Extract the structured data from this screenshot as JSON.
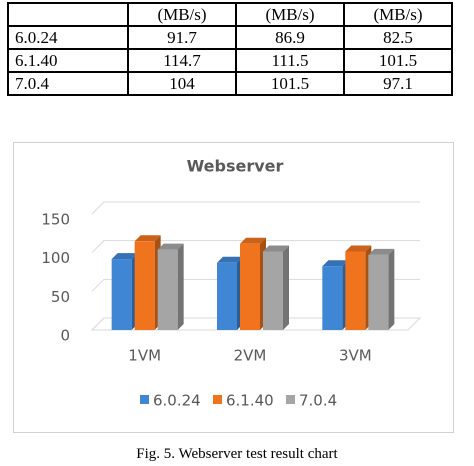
{
  "table": {
    "header": [
      "(MB/s)",
      "(MB/s)",
      "(MB/s)"
    ],
    "rows": [
      [
        "6.0.24",
        "91.7",
        "86.9",
        "82.5"
      ],
      [
        "6.1.40",
        "114.7",
        "111.5",
        "101.5"
      ],
      [
        "7.0.4",
        "104",
        "101.5",
        "97.1"
      ]
    ]
  },
  "chart_data": {
    "type": "bar",
    "title": "Webserver",
    "categories": [
      "1VM",
      "2VM",
      "3VM"
    ],
    "series": [
      {
        "name": "6.0.24",
        "color": "#3f86d4",
        "values": [
          91.7,
          86.9,
          82.5
        ]
      },
      {
        "name": "6.1.40",
        "color": "#f0741e",
        "values": [
          114.7,
          111.5,
          101.5
        ]
      },
      {
        "name": "7.0.4",
        "color": "#a5a5a5",
        "values": [
          104,
          101.5,
          97.1
        ]
      }
    ],
    "ylim": [
      0,
      150
    ],
    "yticks": [
      0,
      50,
      100,
      150
    ],
    "grid": true
  },
  "caption": "Fig. 5.  Webserver test result chart"
}
